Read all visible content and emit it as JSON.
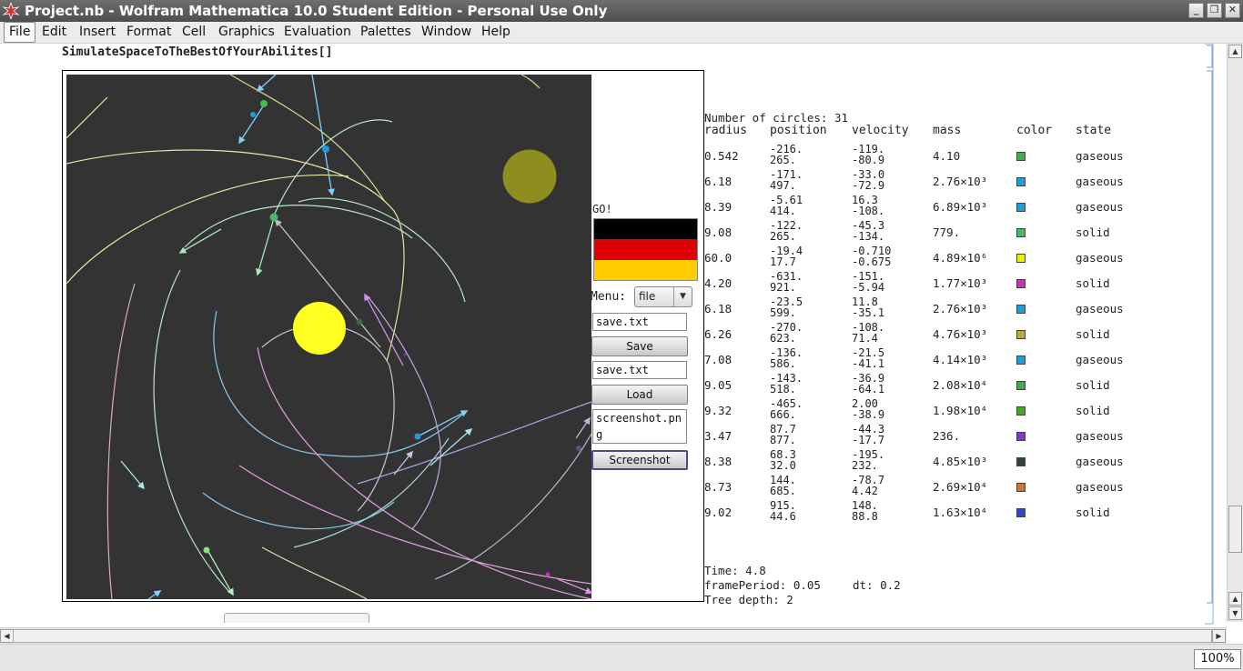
{
  "window": {
    "title": "Project.nb - Wolfram Mathematica 10.0 Student Edition - Personal Use Only",
    "minimize_glyph": "_",
    "restore_glyph": "❐",
    "close_glyph": "✕"
  },
  "menubar": {
    "items": [
      "File",
      "Edit",
      "Insert",
      "Format",
      "Cell",
      "Graphics",
      "Evaluation",
      "Palettes",
      "Window",
      "Help"
    ]
  },
  "notebook": {
    "input_code": "SimulateSpaceToTheBestOfYourAbilites[]"
  },
  "controls": {
    "go_label": "GO!",
    "flag_colors": [
      "#000000",
      "#dd0000",
      "#ffcc00"
    ],
    "menu_label": "Menu:",
    "menu_value": "file",
    "save_field": "save.txt",
    "save_button": "Save",
    "load_field": "save.txt",
    "load_button": "Load",
    "screenshot_field": "screenshot.png",
    "screenshot_button": "Screenshot"
  },
  "stats": {
    "count_line": "Number of circles: 31",
    "headers": [
      "radius",
      "position",
      "velocity",
      "mass",
      "color",
      "state"
    ],
    "rows": [
      {
        "radius": "0.542",
        "pos1": "-216.",
        "pos2": "265.",
        "vel1": "-119.",
        "vel2": "-80.9",
        "mass": "4.10",
        "color": "#44aa55",
        "state": "gaseous"
      },
      {
        "radius": "6.18",
        "pos1": "-171.",
        "pos2": "497.",
        "vel1": "-33.0",
        "vel2": "-72.9",
        "mass": "2.76×10³",
        "color": "#1e9de0",
        "state": "gaseous"
      },
      {
        "radius": "8.39",
        "pos1": "-5.61",
        "pos2": "414.",
        "vel1": "16.3",
        "vel2": "-108.",
        "mass": "6.89×10³",
        "color": "#1e9de0",
        "state": "gaseous"
      },
      {
        "radius": "9.08",
        "pos1": "-122.",
        "pos2": "265.",
        "vel1": "-45.3",
        "vel2": "-134.",
        "mass": "779.",
        "color": "#44bb66",
        "state": "solid"
      },
      {
        "radius": "60.0",
        "pos1": "-19.4",
        "pos2": "17.7",
        "vel1": "-0.710",
        "vel2": "-0.675",
        "mass": "4.89×10⁶",
        "color": "#eeee00",
        "state": "gaseous"
      },
      {
        "radius": "4.20",
        "pos1": "-631.",
        "pos2": "921.",
        "vel1": "-151.",
        "vel2": "-5.94",
        "mass": "1.77×10³",
        "color": "#cc33bb",
        "state": "solid"
      },
      {
        "radius": "6.18",
        "pos1": "-23.5",
        "pos2": "599.",
        "vel1": "11.8",
        "vel2": "-35.1",
        "mass": "2.76×10³",
        "color": "#1e9de0",
        "state": "gaseous"
      },
      {
        "radius": "6.26",
        "pos1": "-270.",
        "pos2": "623.",
        "vel1": "-108.",
        "vel2": "71.4",
        "mass": "4.76×10³",
        "color": "#bbaa33",
        "state": "solid"
      },
      {
        "radius": "7.08",
        "pos1": "-136.",
        "pos2": "586.",
        "vel1": "-21.5",
        "vel2": "-41.1",
        "mass": "4.14×10³",
        "color": "#1e9de0",
        "state": "gaseous"
      },
      {
        "radius": "9.05",
        "pos1": "-143.",
        "pos2": "518.",
        "vel1": "-36.9",
        "vel2": "-64.1",
        "mass": "2.08×10⁴",
        "color": "#44aa55",
        "state": "solid"
      },
      {
        "radius": "9.32",
        "pos1": "-465.",
        "pos2": "666.",
        "vel1": "2.00",
        "vel2": "-38.9",
        "mass": "1.98×10⁴",
        "color": "#44aa22",
        "state": "solid"
      },
      {
        "radius": "3.47",
        "pos1": "87.7",
        "pos2": "877.",
        "vel1": "-44.3",
        "vel2": "-17.7",
        "mass": "236.",
        "color": "#8833cc",
        "state": "gaseous"
      },
      {
        "radius": "8.38",
        "pos1": "68.3",
        "pos2": "32.0",
        "vel1": "-195.",
        "vel2": "232.",
        "mass": "4.85×10³",
        "color": "#334433",
        "state": "gaseous"
      },
      {
        "radius": "8.73",
        "pos1": "144.",
        "pos2": "685.",
        "vel1": "-78.7",
        "vel2": "4.42",
        "mass": "2.69×10⁴",
        "color": "#cc7733",
        "state": "gaseous"
      },
      {
        "radius": "9.02",
        "pos1": "915.",
        "pos2": "44.6",
        "vel1": "148.",
        "vel2": "88.8",
        "mass": "1.63×10⁴",
        "color": "#3344cc",
        "state": "solid"
      }
    ],
    "time_line": "Time: 4.8",
    "frame_line": "framePeriod: 0.05",
    "dt_line": "dt: 0.2",
    "tree_line": "Tree depth: 2"
  },
  "status": {
    "zoom": "100%"
  }
}
